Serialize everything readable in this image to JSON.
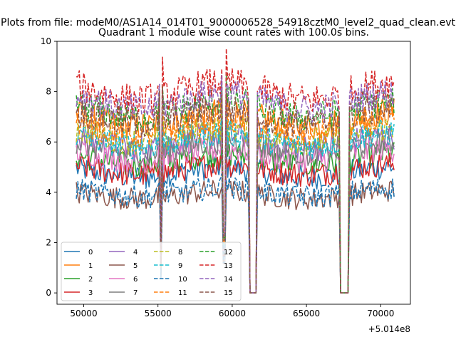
{
  "chart_data": {
    "type": "line",
    "suptitle": "Plots from file: modeM0/AS1A14_014T01_9000006528_54918cztM0_level2_quad_clean.evt",
    "title": "Quadrant 1 module wise count rates with 100.0s bins.",
    "xlabel": "",
    "ylabel": "",
    "x_offset_label": "+5.014e8",
    "xlim": [
      48200,
      72000
    ],
    "ylim": [
      -0.45,
      10
    ],
    "xticks": [
      50000,
      55000,
      60000,
      65000,
      70000
    ],
    "yticks": [
      0,
      2,
      4,
      6,
      8,
      10
    ],
    "x_start": 49500,
    "x_end": 70900,
    "bin_width": 100,
    "dips": [
      {
        "center": 55200,
        "type": "spike",
        "min_factor": 0.15
      },
      {
        "center": 59450,
        "type": "spike",
        "min_factor": 0.3
      },
      {
        "start": 61200,
        "end": 61600,
        "type": "gap"
      },
      {
        "start": 67300,
        "end": 67800,
        "type": "gap"
      }
    ],
    "legend_position": "lower left",
    "series": [
      {
        "name": "0",
        "color": "#1f77b4",
        "dash": "solid",
        "mean": 4.8
      },
      {
        "name": "1",
        "color": "#ff7f0e",
        "dash": "solid",
        "mean": 6.9
      },
      {
        "name": "2",
        "color": "#2ca02c",
        "dash": "solid",
        "mean": 5.3
      },
      {
        "name": "3",
        "color": "#d62728",
        "dash": "solid",
        "mean": 4.9
      },
      {
        "name": "4",
        "color": "#9467bd",
        "dash": "solid",
        "mean": 6.0
      },
      {
        "name": "5",
        "color": "#8c564b",
        "dash": "solid",
        "mean": 3.9
      },
      {
        "name": "6",
        "color": "#e377c2",
        "dash": "solid",
        "mean": 5.5
      },
      {
        "name": "7",
        "color": "#7f7f7f",
        "dash": "solid",
        "mean": 5.8
      },
      {
        "name": "8",
        "color": "#bcbd22",
        "dash": "dashed",
        "mean": 6.3
      },
      {
        "name": "9",
        "color": "#17becf",
        "dash": "dashed",
        "mean": 6.1
      },
      {
        "name": "10",
        "color": "#1f77b4",
        "dash": "dashed",
        "mean": 4.0
      },
      {
        "name": "11",
        "color": "#ff7f0e",
        "dash": "dashed",
        "mean": 6.6
      },
      {
        "name": "12",
        "color": "#2ca02c",
        "dash": "dashed",
        "mean": 7.3
      },
      {
        "name": "13",
        "color": "#d62728",
        "dash": "dashed",
        "mean": 8.0
      },
      {
        "name": "14",
        "color": "#9467bd",
        "dash": "dashed",
        "mean": 7.6
      },
      {
        "name": "15",
        "color": "#8c564b",
        "dash": "dashed",
        "mean": 7.0
      }
    ]
  }
}
